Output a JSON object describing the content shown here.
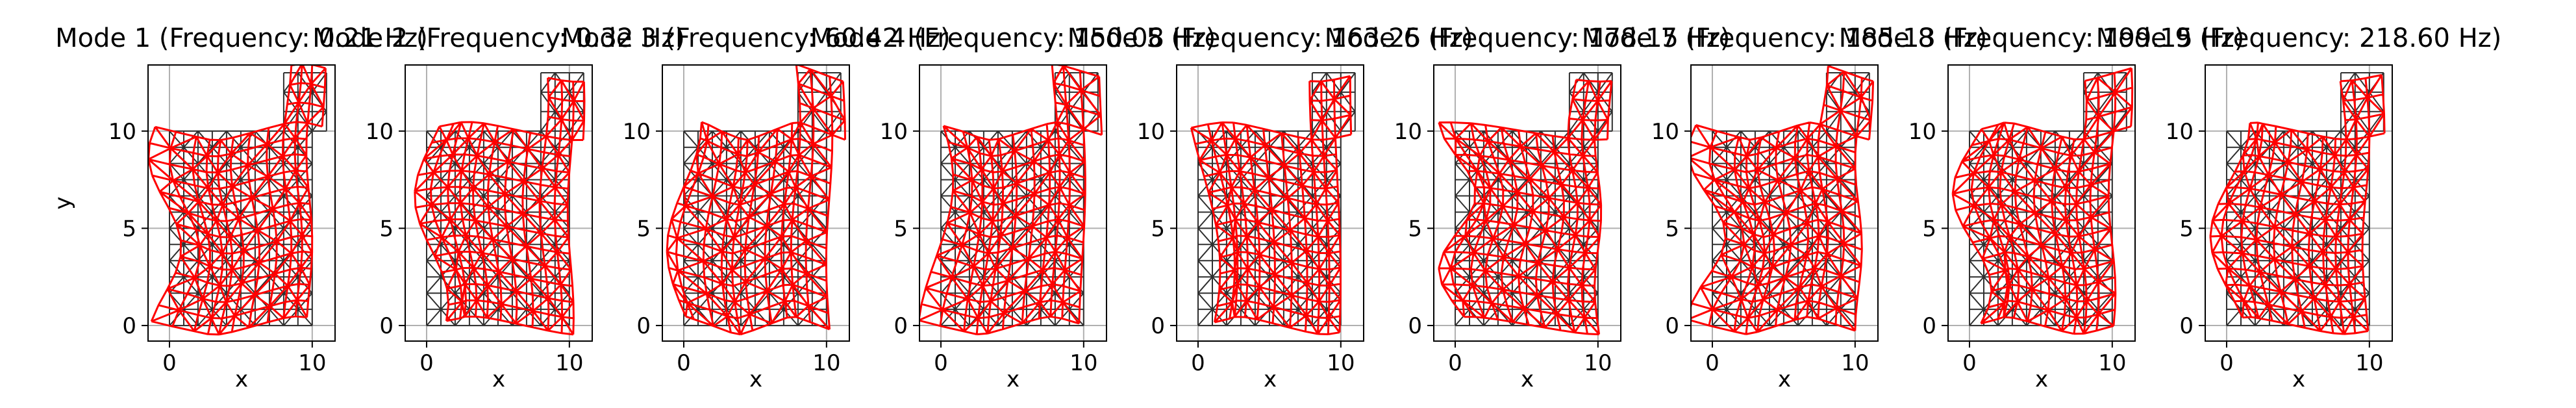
{
  "chart_data": [
    {
      "type": "mesh",
      "title": "Mode 1 (Frequency: 0.21 Hz)",
      "xlabel": "x",
      "ylabel": "y",
      "xticks": [
        "0",
        "10"
      ],
      "yticks": [
        "0",
        "5",
        "10"
      ],
      "xlim": [
        -1.5,
        11.6
      ],
      "ylim": [
        -0.8,
        13.4
      ],
      "grid": true,
      "series": [
        {
          "color": "#2f2f2f",
          "role": "undeformed mesh"
        },
        {
          "color": "#ff0000",
          "role": "deformed mesh"
        }
      ]
    },
    {
      "type": "mesh",
      "title": "Mode 2 (Frequency: 0.32 Hz)",
      "xlabel": "x",
      "ylabel": "",
      "xticks": [
        "0",
        "10"
      ],
      "yticks": [
        "0",
        "5",
        "10"
      ],
      "xlim": [
        -1.5,
        11.6
      ],
      "ylim": [
        -0.8,
        13.4
      ],
      "grid": true,
      "series": [
        {
          "color": "#2f2f2f",
          "role": "undeformed mesh"
        },
        {
          "color": "#ff0000",
          "role": "deformed mesh"
        }
      ]
    },
    {
      "type": "mesh",
      "title": "Mode 3 (Frequency: 60.42 Hz)",
      "xlabel": "x",
      "ylabel": "",
      "xticks": [
        "0",
        "10"
      ],
      "yticks": [
        "0",
        "5",
        "10"
      ],
      "xlim": [
        -1.5,
        11.6
      ],
      "ylim": [
        -0.8,
        13.4
      ],
      "grid": true,
      "series": [
        {
          "color": "#2f2f2f",
          "role": "undeformed mesh"
        },
        {
          "color": "#ff0000",
          "role": "deformed mesh"
        }
      ]
    },
    {
      "type": "mesh",
      "title": "Mode 4 (Frequency: 150.08 Hz)",
      "xlabel": "x",
      "ylabel": "",
      "xticks": [
        "0",
        "10"
      ],
      "yticks": [
        "0",
        "5",
        "10"
      ],
      "xlim": [
        -1.5,
        11.6
      ],
      "ylim": [
        -0.8,
        13.4
      ],
      "grid": true,
      "series": [
        {
          "color": "#2f2f2f",
          "role": "undeformed mesh"
        },
        {
          "color": "#ff0000",
          "role": "deformed mesh"
        }
      ]
    },
    {
      "type": "mesh",
      "title": "Mode 5 (Frequency: 163.25 Hz)",
      "xlabel": "x",
      "ylabel": "",
      "xticks": [
        "0",
        "10"
      ],
      "yticks": [
        "0",
        "5",
        "10"
      ],
      "xlim": [
        -1.5,
        11.6
      ],
      "ylim": [
        -0.8,
        13.4
      ],
      "grid": true,
      "series": [
        {
          "color": "#2f2f2f",
          "role": "undeformed mesh"
        },
        {
          "color": "#ff0000",
          "role": "deformed mesh"
        }
      ]
    },
    {
      "type": "mesh",
      "title": "Mode 6 (Frequency: 178.15 Hz)",
      "xlabel": "x",
      "ylabel": "",
      "xticks": [
        "0",
        "10"
      ],
      "yticks": [
        "0",
        "5",
        "10"
      ],
      "xlim": [
        -1.5,
        11.6
      ],
      "ylim": [
        -0.8,
        13.4
      ],
      "grid": true,
      "series": [
        {
          "color": "#2f2f2f",
          "role": "undeformed mesh"
        },
        {
          "color": "#ff0000",
          "role": "deformed mesh"
        }
      ]
    },
    {
      "type": "mesh",
      "title": "Mode 7 (Frequency: 185.13 Hz)",
      "xlabel": "x",
      "ylabel": "",
      "xticks": [
        "0",
        "10"
      ],
      "yticks": [
        "0",
        "5",
        "10"
      ],
      "xlim": [
        -1.5,
        11.6
      ],
      "ylim": [
        -0.8,
        13.4
      ],
      "grid": true,
      "series": [
        {
          "color": "#2f2f2f",
          "role": "undeformed mesh"
        },
        {
          "color": "#ff0000",
          "role": "deformed mesh"
        }
      ]
    },
    {
      "type": "mesh",
      "title": "Mode 8 (Frequency: 199.15 Hz)",
      "xlabel": "x",
      "ylabel": "",
      "xticks": [
        "0",
        "10"
      ],
      "yticks": [
        "0",
        "5",
        "10"
      ],
      "xlim": [
        -1.5,
        11.6
      ],
      "ylim": [
        -0.8,
        13.4
      ],
      "grid": true,
      "series": [
        {
          "color": "#2f2f2f",
          "role": "undeformed mesh"
        },
        {
          "color": "#ff0000",
          "role": "deformed mesh"
        }
      ]
    },
    {
      "type": "mesh",
      "title": "Mode 9 (Frequency: 218.60 Hz)",
      "xlabel": "x",
      "ylabel": "",
      "xticks": [
        "0",
        "10"
      ],
      "yticks": [
        "0",
        "5",
        "10"
      ],
      "xlim": [
        -1.5,
        11.6
      ],
      "ylim": [
        -0.8,
        13.4
      ],
      "grid": true,
      "series": [
        {
          "color": "#2f2f2f",
          "role": "undeformed mesh"
        },
        {
          "color": "#ff0000",
          "role": "deformed mesh"
        }
      ]
    }
  ]
}
